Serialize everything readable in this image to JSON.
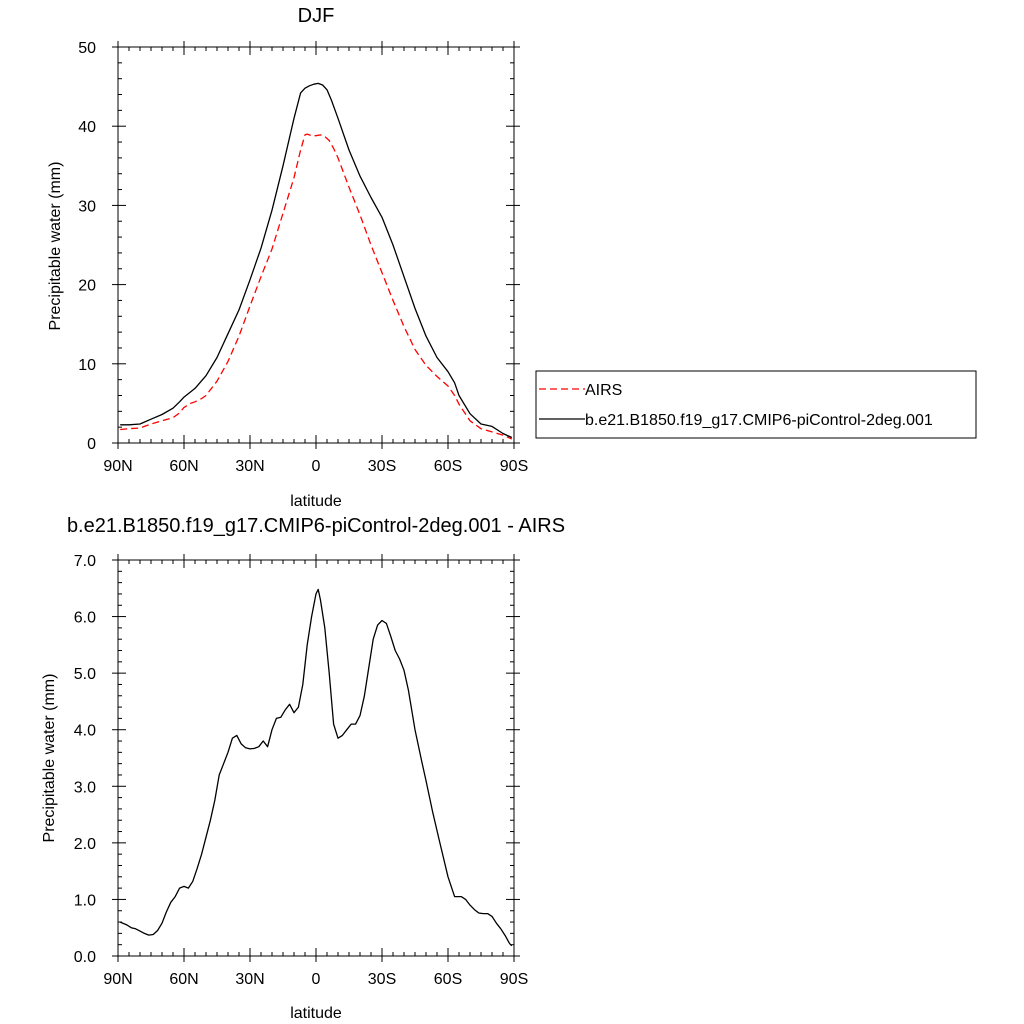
{
  "chart_data": [
    {
      "type": "line",
      "title": "DJF",
      "xlabel": "latitude",
      "ylabel": "Precipitable water (mm)",
      "ylim": [
        0,
        50
      ],
      "xlim": [
        90,
        -90
      ],
      "yticks": [
        0,
        10,
        20,
        30,
        40,
        50
      ],
      "ytick_labels": [
        "0",
        "10",
        "20",
        "30",
        "40",
        "50"
      ],
      "xticks": [
        90,
        60,
        30,
        0,
        -30,
        -60,
        -90
      ],
      "xtick_labels": [
        "90N",
        "60N",
        "30N",
        "0",
        "30S",
        "60S",
        "90S"
      ],
      "legend": {
        "placement": "right",
        "entries": [
          "AIRS",
          "b.e21.B1850.f19_g17.CMIP6-piControl-2deg.001"
        ]
      },
      "series": [
        {
          "name": "AIRS",
          "style": "dashed",
          "color": "#ff0000",
          "x": [
            89,
            85,
            80,
            75,
            70,
            65,
            62,
            60,
            57,
            55,
            52,
            50,
            45,
            40,
            35,
            30,
            25,
            20,
            15,
            10,
            7,
            5,
            4,
            2,
            0,
            -2,
            -4,
            -6,
            -8,
            -10,
            -15,
            -20,
            -25,
            -30,
            -35,
            -40,
            -45,
            -50,
            -55,
            -60,
            -63,
            -65,
            -70,
            -75,
            -80,
            -85,
            -89
          ],
          "values": [
            1.7,
            1.8,
            1.9,
            2.4,
            2.8,
            3.2,
            3.8,
            4.5,
            5.0,
            5.2,
            5.6,
            6.0,
            7.8,
            10.3,
            13.5,
            17.3,
            21.0,
            24.5,
            29.0,
            33.5,
            37.0,
            38.9,
            39.0,
            38.8,
            38.8,
            38.9,
            38.7,
            38.2,
            37.2,
            36.0,
            32.3,
            28.8,
            25.0,
            21.5,
            18.0,
            14.7,
            11.8,
            9.8,
            8.4,
            7.2,
            6.0,
            4.9,
            2.8,
            1.8,
            1.4,
            1.0,
            0.5
          ]
        },
        {
          "name": "b.e21.B1850.f19_g17.CMIP6-piControl-2deg.001",
          "style": "solid",
          "color": "#000000",
          "x": [
            89,
            85,
            80,
            75,
            70,
            65,
            62,
            60,
            55,
            50,
            45,
            40,
            35,
            30,
            25,
            20,
            15,
            10,
            7,
            5,
            3,
            1,
            -1,
            -3,
            -5,
            -7,
            -10,
            -15,
            -20,
            -25,
            -30,
            -35,
            -40,
            -45,
            -50,
            -55,
            -60,
            -63,
            -65,
            -70,
            -75,
            -80,
            -85,
            -89
          ],
          "values": [
            2.3,
            2.3,
            2.4,
            3.0,
            3.6,
            4.4,
            5.2,
            5.8,
            6.9,
            8.5,
            10.8,
            13.8,
            16.8,
            20.6,
            24.6,
            29.4,
            35.0,
            41.0,
            44.2,
            44.8,
            45.1,
            45.3,
            45.4,
            45.2,
            44.6,
            43.3,
            41.0,
            37.0,
            33.7,
            31.0,
            28.5,
            25.0,
            21.0,
            17.0,
            13.5,
            10.8,
            9.0,
            7.6,
            6.0,
            3.7,
            2.4,
            2.1,
            1.2,
            0.7
          ]
        }
      ]
    },
    {
      "type": "line",
      "title": "b.e21.B1850.f19_g17.CMIP6-piControl-2deg.001 - AIRS",
      "xlabel": "latitude",
      "ylabel": "Precipitable water (mm)",
      "ylim": [
        0,
        7
      ],
      "xlim": [
        90,
        -90
      ],
      "yticks": [
        0,
        1,
        2,
        3,
        4,
        5,
        6,
        7
      ],
      "ytick_labels": [
        "0.0",
        "1.0",
        "2.0",
        "3.0",
        "4.0",
        "5.0",
        "6.0",
        "7.0"
      ],
      "xticks": [
        90,
        60,
        30,
        0,
        -30,
        -60,
        -90
      ],
      "xtick_labels": [
        "90N",
        "60N",
        "30N",
        "0",
        "30S",
        "60S",
        "90S"
      ],
      "series": [
        {
          "style": "solid",
          "color": "#000000",
          "x": [
            89,
            86,
            84,
            82,
            80,
            78,
            76,
            74,
            72,
            70,
            68,
            66,
            64,
            62,
            60,
            58,
            56,
            54,
            52,
            50,
            48,
            46,
            44,
            42,
            40,
            38,
            36,
            34,
            32,
            30,
            28,
            26,
            24,
            22,
            20,
            18,
            16,
            14,
            12,
            10,
            8,
            6,
            4,
            2,
            0,
            -1,
            -2,
            -4,
            -6,
            -8,
            -10,
            -12,
            -14,
            -16,
            -18,
            -20,
            -22,
            -24,
            -26,
            -28,
            -30,
            -32,
            -34,
            -36,
            -38,
            -40,
            -42,
            -45,
            -48,
            -50,
            -53,
            -56,
            -60,
            -63,
            -66,
            -68,
            -70,
            -72,
            -74,
            -76,
            -78,
            -80,
            -82,
            -84,
            -86,
            -88,
            -89
          ],
          "values": [
            0.6,
            0.55,
            0.5,
            0.48,
            0.44,
            0.4,
            0.37,
            0.38,
            0.45,
            0.58,
            0.78,
            0.95,
            1.05,
            1.2,
            1.23,
            1.2,
            1.32,
            1.55,
            1.8,
            2.1,
            2.4,
            2.75,
            3.2,
            3.4,
            3.6,
            3.85,
            3.9,
            3.75,
            3.68,
            3.66,
            3.67,
            3.7,
            3.8,
            3.7,
            4.0,
            4.2,
            4.22,
            4.35,
            4.45,
            4.3,
            4.4,
            4.8,
            5.5,
            6.0,
            6.4,
            6.48,
            6.3,
            5.8,
            5.0,
            4.1,
            3.85,
            3.9,
            4.0,
            4.1,
            4.1,
            4.25,
            4.6,
            5.1,
            5.6,
            5.85,
            5.93,
            5.88,
            5.65,
            5.4,
            5.25,
            5.05,
            4.7,
            4.0,
            3.45,
            3.1,
            2.55,
            2.05,
            1.4,
            1.05,
            1.05,
            1.0,
            0.9,
            0.82,
            0.76,
            0.75,
            0.75,
            0.7,
            0.58,
            0.48,
            0.36,
            0.22,
            0.18
          ]
        }
      ]
    }
  ]
}
